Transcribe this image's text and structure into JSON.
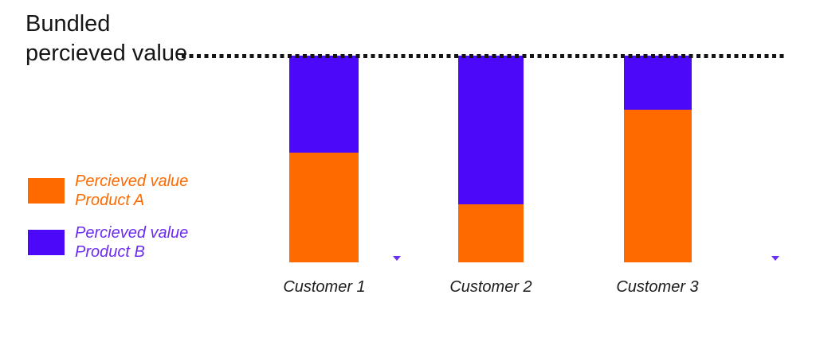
{
  "title": {
    "line1": "Bundled",
    "line2": "percieved value"
  },
  "legend": {
    "items": [
      {
        "line1": "Percieved value",
        "line2": "Product A",
        "color": "#FF6A00",
        "text_color": "#FF6A00"
      },
      {
        "line1": "Percieved value",
        "line2": "Product B",
        "color": "#4C09F9",
        "text_color": "#6C2BF2"
      }
    ]
  },
  "icons": {
    "marker_left": "small-triangle-down",
    "marker_right": "small-triangle-down"
  },
  "colors": {
    "product_a": "#FF6A00",
    "product_b": "#4C09F9",
    "reference_line": "#141414",
    "title_text": "#161616",
    "category_text": "#1C1C1C"
  },
  "chart_data": {
    "type": "bar",
    "subtype": "stacked",
    "title": "Bundled percieved value",
    "categories": [
      "Customer 1",
      "Customer 2",
      "Customer 3"
    ],
    "series": [
      {
        "name": "Percieved value Product A",
        "color": "#FF6A00",
        "values": [
          53,
          28,
          74
        ]
      },
      {
        "name": "Percieved value Product B",
        "color": "#4C09F9",
        "values": [
          47,
          72,
          26
        ]
      }
    ],
    "annotations": [
      {
        "type": "dotted-reference-line",
        "label": "Bundled percieved value",
        "y": 100
      }
    ],
    "ylim": [
      0,
      100
    ],
    "xlabel": "",
    "ylabel": "",
    "grid": false,
    "legend_position": "left"
  }
}
